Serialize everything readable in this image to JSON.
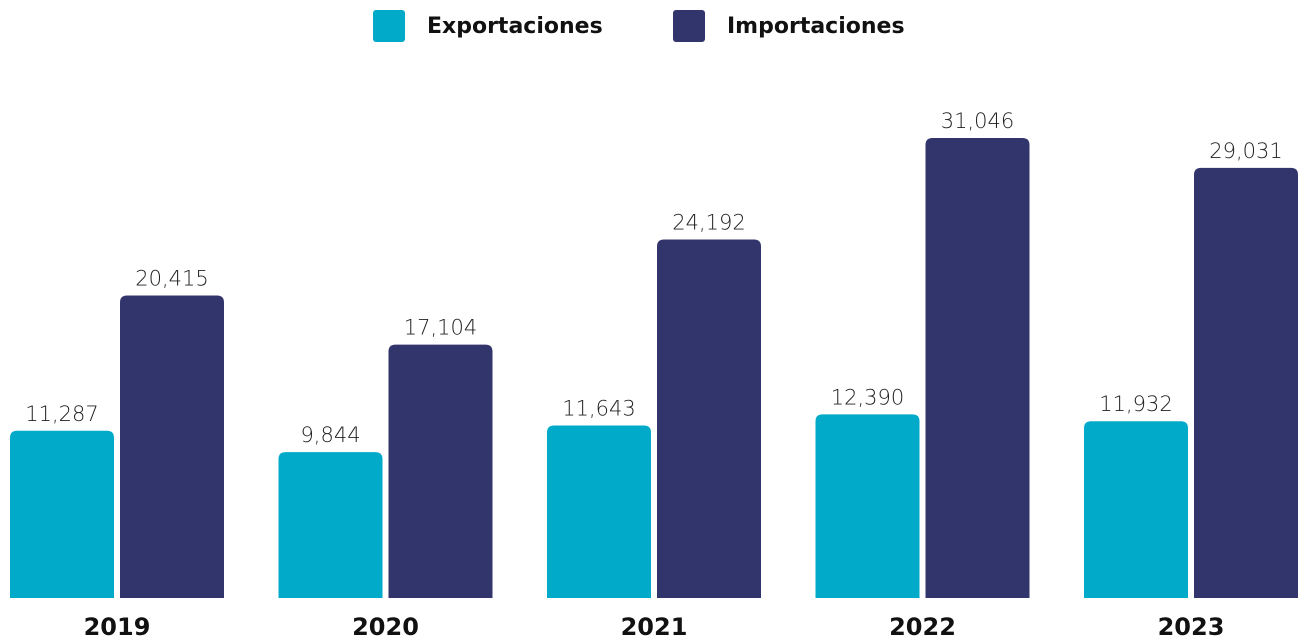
{
  "chart_data": {
    "type": "bar",
    "categories": [
      "2019",
      "2020",
      "2021",
      "2022",
      "2023"
    ],
    "series": [
      {
        "name": "Exportaciones",
        "color": "#00aac8",
        "values": [
          11287,
          9844,
          11643,
          12390,
          11932
        ],
        "value_labels": [
          "11,287",
          "9,844",
          "11,643",
          "12,390",
          "11,932"
        ]
      },
      {
        "name": "Importaciones",
        "color": "#32356c",
        "values": [
          20415,
          17104,
          24192,
          31046,
          29031
        ],
        "value_labels": [
          "20,415",
          "17,104",
          "24,192",
          "31,046",
          "29,031"
        ]
      }
    ],
    "legend": "top"
  }
}
